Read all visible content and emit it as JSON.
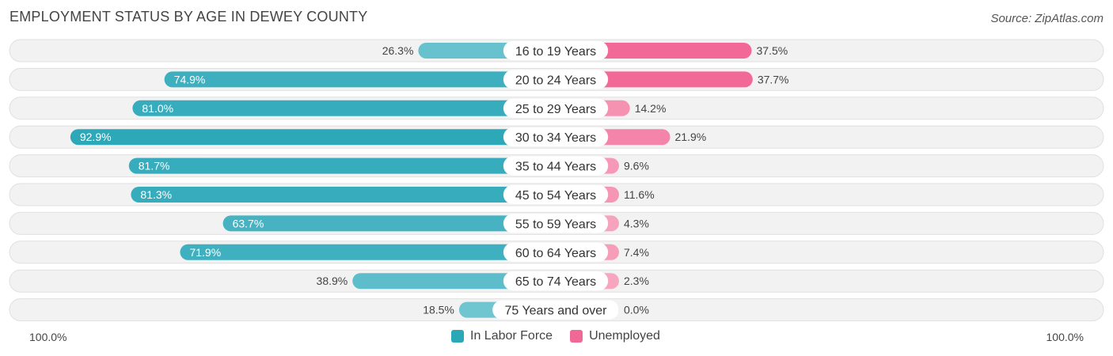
{
  "title": "EMPLOYMENT STATUS BY AGE IN DEWEY COUNTY",
  "source": "Source: ZipAtlas.com",
  "axis": {
    "left_label": "100.0%",
    "right_label": "100.0%"
  },
  "legend": [
    {
      "label": "In Labor Force",
      "color": "#2ba8b8"
    },
    {
      "label": "Unemployed",
      "color": "#f06895"
    }
  ],
  "chart_data": {
    "type": "bar",
    "title": "EMPLOYMENT STATUS BY AGE IN DEWEY COUNTY",
    "categories": [
      "16 to 19 Years",
      "20 to 24 Years",
      "25 to 29 Years",
      "30 to 34 Years",
      "35 to 44 Years",
      "45 to 54 Years",
      "55 to 59 Years",
      "60 to 64 Years",
      "65 to 74 Years",
      "75 Years and over"
    ],
    "series": [
      {
        "name": "In Labor Force",
        "values": [
          26.3,
          74.9,
          81.0,
          92.9,
          81.7,
          81.3,
          63.7,
          71.9,
          38.9,
          18.5
        ],
        "labels": [
          "26.3%",
          "74.9%",
          "81.0%",
          "92.9%",
          "81.7%",
          "81.3%",
          "63.7%",
          "71.9%",
          "38.9%",
          "18.5%"
        ]
      },
      {
        "name": "Unemployed",
        "values": [
          37.5,
          37.7,
          14.2,
          21.9,
          9.6,
          11.6,
          4.3,
          7.4,
          2.3,
          0.0
        ],
        "labels": [
          "37.5%",
          "37.7%",
          "14.2%",
          "21.9%",
          "9.6%",
          "11.6%",
          "4.3%",
          "7.4%",
          "2.3%",
          "0.0%"
        ]
      }
    ],
    "xlim": [
      -100,
      100
    ],
    "orientation": "horizontal-diverging",
    "legend_position": "bottom-center"
  }
}
